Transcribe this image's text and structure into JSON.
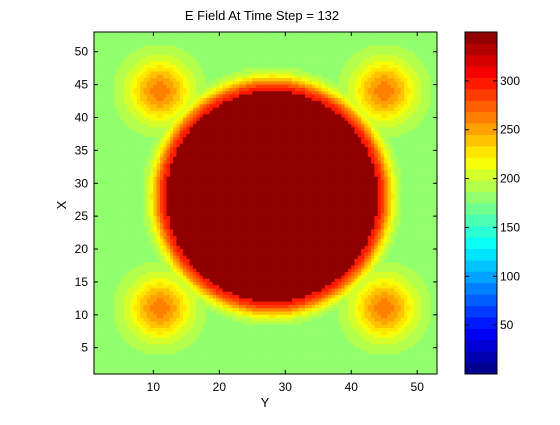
{
  "chart_data": {
    "type": "heatmap",
    "title": "E Field At Time Step = 132",
    "xlabel": "Y",
    "ylabel": "X",
    "xlim": [
      1,
      53
    ],
    "ylim": [
      1,
      53
    ],
    "xticks": [
      10,
      20,
      30,
      40,
      50
    ],
    "yticks": [
      5,
      10,
      15,
      20,
      25,
      30,
      35,
      40,
      45,
      50
    ],
    "colorbar": {
      "range": [
        0,
        350
      ],
      "ticks": [
        50,
        100,
        150,
        200,
        250,
        300
      ],
      "colormap": "jet",
      "levels": 30
    },
    "field": {
      "background_value": 180,
      "disk": {
        "center": [
          28,
          28
        ],
        "radius": 16,
        "value": 350
      },
      "ring_peak_value": 300,
      "corner_hotspots": [
        {
          "center": [
            11,
            44
          ],
          "value": 265
        },
        {
          "center": [
            45,
            44
          ],
          "value": 265
        },
        {
          "center": [
            11,
            11
          ],
          "value": 265
        },
        {
          "center": [
            45,
            11
          ],
          "value": 265
        }
      ]
    },
    "colors": {
      "disk_core": "#800000",
      "background": "#80e080",
      "frame": "#000000"
    }
  }
}
